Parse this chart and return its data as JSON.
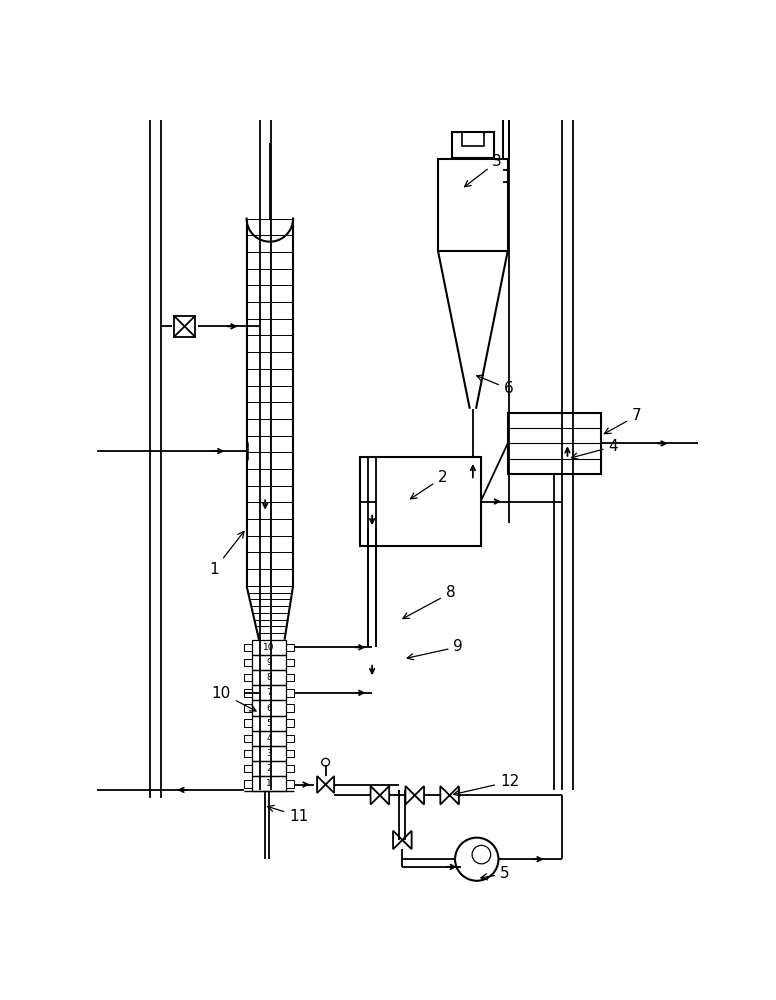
{
  "bg_color": "#ffffff",
  "line_color": "#000000",
  "fig_width": 7.76,
  "fig_height": 10.0,
  "dpi": 100
}
